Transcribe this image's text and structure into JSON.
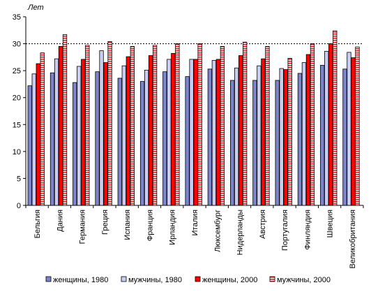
{
  "chart_data": {
    "type": "bar",
    "title": "",
    "xlabel": "",
    "ylabel": "Лет",
    "ylim": [
      0,
      35
    ],
    "yticks": [
      0,
      5,
      10,
      15,
      20,
      25,
      30,
      35
    ],
    "reference_line": 30,
    "legend_position": "bottom",
    "categories": [
      "Бельгия",
      "Дания",
      "Германия",
      "Греция",
      "Испания",
      "Франция",
      "Ирландия",
      "Италия",
      "Люксембург",
      "Нидерланды",
      "Австрия",
      "Португалия",
      "Финляндия",
      "Швеция",
      "Великобритания"
    ],
    "series": [
      {
        "name": "женщины, 1980",
        "color": "#7b83c9",
        "pattern": "solid",
        "values": [
          22.2,
          24.6,
          22.8,
          24.8,
          23.6,
          23.0,
          24.8,
          23.9,
          25.3,
          23.2,
          23.2,
          23.2,
          24.5,
          26.0,
          25.3
        ]
      },
      {
        "name": "мужчины, 1980",
        "color": "#c9cdf2",
        "pattern": "solid",
        "values": [
          24.4,
          27.2,
          25.8,
          28.7,
          25.9,
          25.1,
          27.1,
          27.1,
          26.9,
          25.5,
          25.9,
          25.4,
          26.5,
          28.6,
          28.4
        ]
      },
      {
        "name": "женщины, 2000",
        "color": "#ff0000",
        "pattern": "solid",
        "values": [
          26.3,
          29.5,
          27.1,
          26.5,
          27.6,
          27.8,
          28.2,
          27.1,
          27.1,
          27.8,
          27.2,
          25.2,
          28.0,
          30.0,
          27.4
        ]
      },
      {
        "name": "мужчины, 2000",
        "color": "#cc2a2a",
        "pattern": "hatched",
        "values": [
          28.3,
          31.7,
          29.7,
          30.4,
          29.5,
          29.7,
          30.0,
          30.0,
          29.5,
          30.3,
          29.5,
          27.3,
          30.0,
          32.4,
          29.4
        ]
      }
    ]
  }
}
